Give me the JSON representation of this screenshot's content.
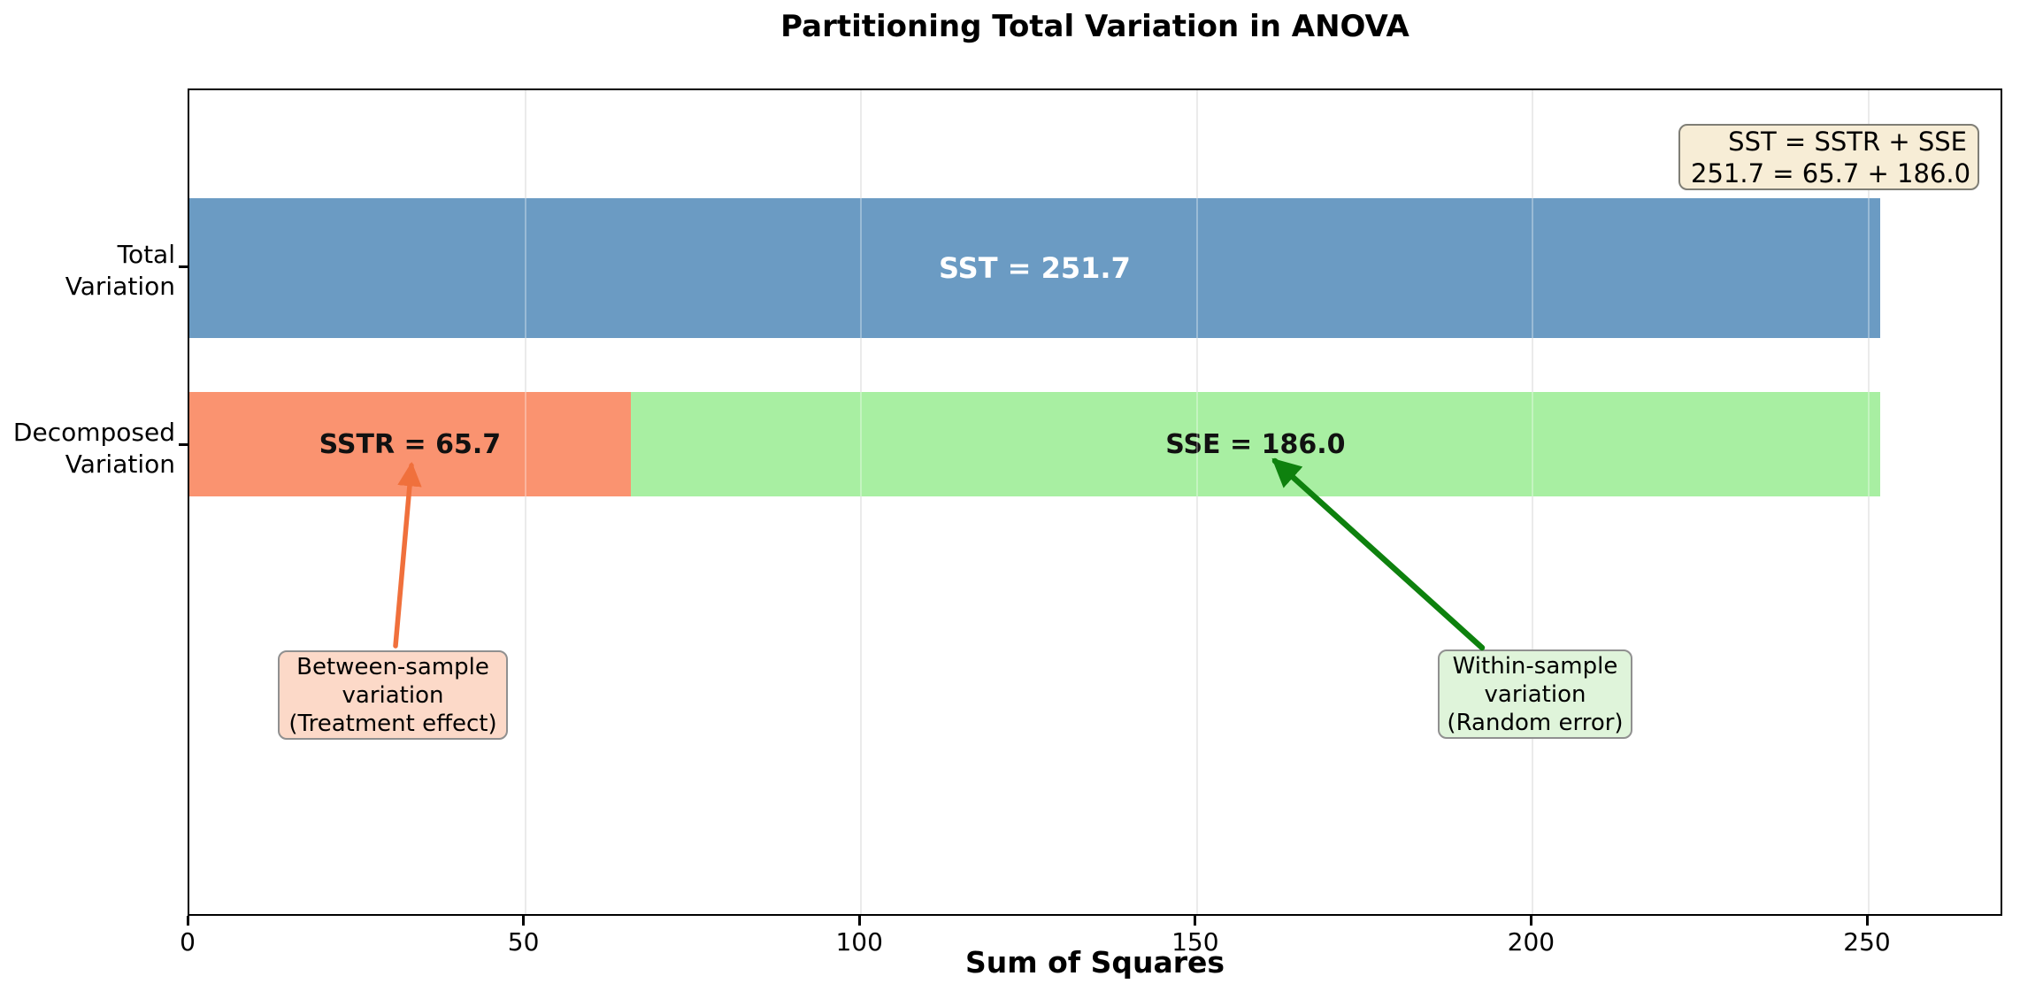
{
  "chart_data": {
    "type": "bar",
    "orientation": "horizontal",
    "stacked": true,
    "title": "Partitioning Total Variation in ANOVA",
    "xlabel": "Sum of Squares",
    "xlim": [
      0,
      270
    ],
    "x_ticks": [
      0,
      50,
      100,
      150,
      200,
      250
    ],
    "grid": "vertical-light",
    "categories": [
      "Total Variation",
      "Decomposed Variation"
    ],
    "category_label_lines": [
      [
        "Total",
        "Variation"
      ],
      [
        "Decomposed",
        "Variation"
      ]
    ],
    "rows": [
      {
        "category": "Total Variation",
        "segments": [
          {
            "name": "SST",
            "value": 251.7,
            "label": "SST = 251.7",
            "color": "#6b9bc3",
            "label_color": "#ffffff"
          }
        ]
      },
      {
        "category": "Decomposed Variation",
        "segments": [
          {
            "name": "SSTR",
            "value": 65.7,
            "label": "SSTR = 65.7",
            "color": "#fa9370",
            "label_color": "#111111"
          },
          {
            "name": "SSE",
            "value": 186.0,
            "label": "SSE = 186.0",
            "color": "#a8efa2",
            "label_color": "#111111"
          }
        ]
      }
    ],
    "equation_box": {
      "line1": "SST = SSTR + SSE",
      "line2": "251.7 = 65.7 + 186.0",
      "bg_color": "#f7edd6"
    },
    "callouts": [
      {
        "line1": "Between-sample",
        "line2": "variation",
        "line3": "(Treatment effect)",
        "bg_color": "#fcd9c8",
        "arrow_color": "#f0703c",
        "points_to": "SSTR = 65.7"
      },
      {
        "line1": "Within-sample",
        "line2": "variation",
        "line3": "(Random error)",
        "bg_color": "#dff4da",
        "arrow_color": "#0e810e",
        "points_to": "SSE = 186.0"
      }
    ]
  }
}
